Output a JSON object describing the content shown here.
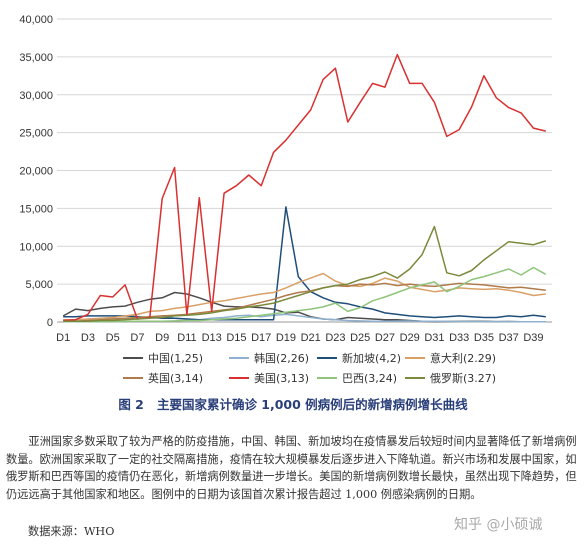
{
  "chart_data": {
    "type": "line",
    "x": [
      "D1",
      "D2",
      "D3",
      "D4",
      "D5",
      "D6",
      "D7",
      "D8",
      "D9",
      "D10",
      "D11",
      "D12",
      "D13",
      "D14",
      "D15",
      "D16",
      "D17",
      "D18",
      "D19",
      "D20",
      "D21",
      "D22",
      "D23",
      "D24",
      "D25",
      "D26",
      "D27",
      "D28",
      "D29",
      "D30",
      "D31",
      "D32",
      "D33",
      "D34",
      "D35",
      "D36",
      "D37",
      "D38",
      "D39",
      "D40"
    ],
    "x_tick_labels": [
      "D1",
      "D3",
      "D5",
      "D7",
      "D9",
      "D11",
      "D13",
      "D15",
      "D17",
      "D19",
      "D21",
      "D23",
      "D25",
      "D27",
      "D29",
      "D31",
      "D33",
      "D35",
      "D37",
      "D39"
    ],
    "y_tick_labels": [
      "0",
      "5,000",
      "10,000",
      "15,000",
      "20,000",
      "25,000",
      "30,000",
      "35,000",
      "40,000"
    ],
    "ylim": [
      0,
      40000
    ],
    "grid": "horizontal",
    "legend_position": "bottom",
    "series": [
      {
        "name": "中国(1,25)",
        "color": "#4d4d4d",
        "values": [
          800,
          1700,
          1500,
          1800,
          2000,
          2100,
          2600,
          3000,
          3200,
          3900,
          3700,
          3200,
          2600,
          2100,
          2000,
          2000,
          1900,
          1700,
          1200,
          1300,
          700,
          400,
          300,
          600,
          500,
          400,
          300,
          300,
          200,
          100,
          50,
          60,
          80,
          90,
          100,
          50,
          60,
          40,
          40,
          30
        ]
      },
      {
        "name": "韩国(2,26)",
        "color": "#8fb1cf",
        "values": [
          100,
          100,
          200,
          300,
          400,
          500,
          400,
          600,
          800,
          500,
          400,
          300,
          500,
          600,
          800,
          900,
          700,
          900,
          1000,
          800,
          600,
          400,
          300,
          200,
          150,
          100,
          100,
          120,
          130,
          100,
          90,
          80,
          70,
          60,
          60,
          50,
          50,
          40,
          40,
          30
        ]
      },
      {
        "name": "新加坡(4,2)",
        "color": "#1f4e79",
        "values": [
          700,
          700,
          800,
          800,
          800,
          800,
          700,
          600,
          500,
          500,
          400,
          300,
          300,
          300,
          300,
          300,
          300,
          300,
          15200,
          6000,
          4000,
          3200,
          2600,
          2400,
          2000,
          1700,
          1200,
          1000,
          800,
          700,
          600,
          700,
          800,
          700,
          600,
          600,
          800,
          700,
          900,
          700
        ]
      },
      {
        "name": "意大利(2.29)",
        "color": "#d9a066",
        "values": [
          300,
          300,
          400,
          500,
          600,
          800,
          1000,
          1400,
          1500,
          1800,
          2000,
          2300,
          2600,
          2800,
          3100,
          3400,
          3700,
          3900,
          4500,
          5200,
          5800,
          6400,
          5400,
          4800,
          4700,
          5100,
          5800,
          5400,
          4600,
          4300,
          4000,
          4200,
          4500,
          4400,
          4300,
          4400,
          4200,
          3900,
          3500,
          3700
        ]
      },
      {
        "name": "英国(3,14)",
        "color": "#b07a4a",
        "values": [
          100,
          100,
          200,
          300,
          400,
          500,
          600,
          700,
          800,
          900,
          1000,
          1200,
          1400,
          1600,
          1800,
          2200,
          2600,
          3000,
          3500,
          3900,
          4100,
          4500,
          4800,
          4700,
          5000,
          4900,
          5100,
          4800,
          5000,
          4800,
          4700,
          4900,
          5100,
          5000,
          4900,
          4700,
          4500,
          4600,
          4400,
          4200
        ]
      },
      {
        "name": "美国(3,13)",
        "color": "#d93030",
        "values": [
          200,
          300,
          1000,
          3500,
          3300,
          4900,
          400,
          600,
          16300,
          20400,
          900,
          16400,
          1400,
          17000,
          18000,
          19400,
          18000,
          22400,
          24000,
          26000,
          28000,
          32000,
          33500,
          26400,
          29000,
          31500,
          31000,
          35300,
          31500,
          31500,
          29000,
          24500,
          25400,
          28400,
          32500,
          29600,
          28300,
          27600,
          25600,
          25200
        ]
      },
      {
        "name": "巴西(3,24)",
        "color": "#8fc47a",
        "values": [
          50,
          50,
          50,
          60,
          60,
          80,
          100,
          100,
          100,
          150,
          200,
          200,
          300,
          400,
          500,
          700,
          900,
          1100,
          1300,
          1500,
          1700,
          2000,
          2500,
          1400,
          1900,
          2800,
          3300,
          3900,
          4500,
          4900,
          5300,
          4000,
          4700,
          5600,
          6000,
          6500,
          7000,
          6200,
          7200,
          6300
        ]
      },
      {
        "name": "俄罗斯(3.27)",
        "color": "#7a8a3c",
        "values": [
          100,
          100,
          100,
          200,
          200,
          300,
          400,
          500,
          600,
          800,
          900,
          1000,
          1200,
          1500,
          1700,
          2000,
          2200,
          2500,
          3000,
          3500,
          4000,
          4500,
          4800,
          5000,
          5600,
          6000,
          6600,
          5800,
          7000,
          8900,
          12600,
          6500,
          6100,
          6800,
          8200,
          9400,
          10600,
          10400,
          10200,
          10700
        ]
      }
    ]
  },
  "caption": {
    "figure_label": "图 2",
    "title": "主要国家累计确诊 1,000 例病例后的新增病例增长曲线"
  },
  "description": "亚洲国家多数采取了较为严格的防疫措施，中国、韩国、新加坡均在疫情暴发后较短时间内显著降低了新增病例数量。欧洲国家采取了一定的社交隔离措施，疫情在较大规模暴发后逐步进入下降轨道。新兴市场和发展中国家，如俄罗斯和巴西等国的疫情仍在恶化，新增病例数量进一步增长。美国的新增病例数增长最快，虽然出现下降趋势，但仍远远高于其他国家和地区。图例中的日期为该国首次累计报告超过 1,000 例感染病例的日期。",
  "source": "数据来源：WHO",
  "watermark": "知乎 @小硕诚"
}
